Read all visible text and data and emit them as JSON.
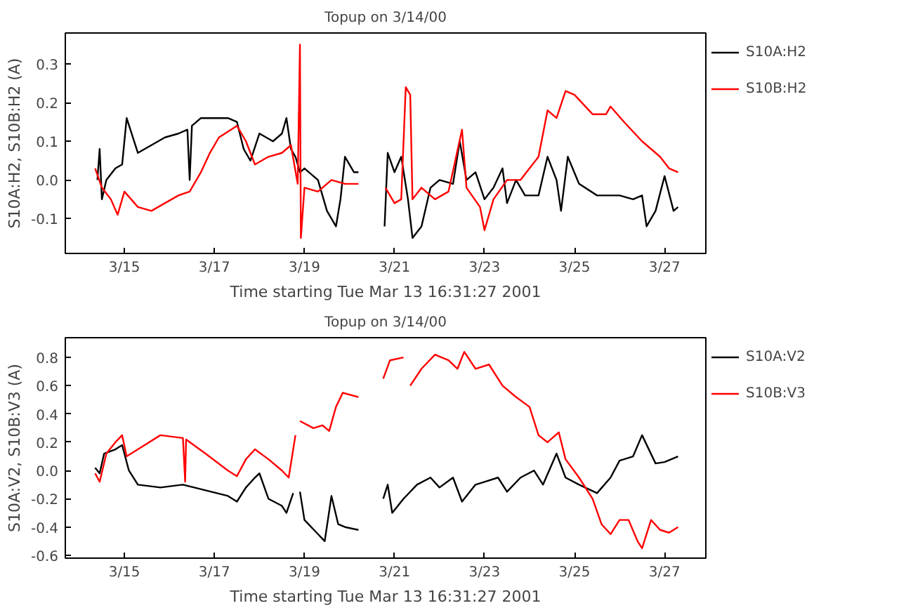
{
  "chart_data": [
    {
      "type": "line",
      "title": "Topup on 3/14/00",
      "xlabel": "Time starting Tue Mar 13 16:31:27 2001",
      "ylabel": "S10A:H2, S10B:H2 (A)",
      "xlim": [
        "2001-03-13T16:30",
        "2001-03-27T22:00"
      ],
      "xticks": [
        {
          "value": "2001-03-15",
          "label": "3/15"
        },
        {
          "value": "2001-03-17",
          "label": "3/17"
        },
        {
          "value": "2001-03-19",
          "label": "3/19"
        },
        {
          "value": "2001-03-21",
          "label": "3/21"
        },
        {
          "value": "2001-03-23",
          "label": "3/23"
        },
        {
          "value": "2001-03-25",
          "label": "3/25"
        },
        {
          "value": "2001-03-27",
          "label": "3/27"
        }
      ],
      "ylim": [
        -0.19,
        0.38
      ],
      "yticks": [
        {
          "value": -0.1,
          "label": "-0.1"
        },
        {
          "value": 0,
          "label": "0.0"
        },
        {
          "value": 0.1,
          "label": "0.1"
        },
        {
          "value": 0.2,
          "label": "0.2"
        },
        {
          "value": 0.3,
          "label": "0.3"
        }
      ],
      "grid": false,
      "legend": "right",
      "line_style": "solid",
      "series": [
        {
          "name": "S10A:H2",
          "color": "#000000",
          "x": [
            "2001-03-14T09:36",
            "2001-03-14T10:48",
            "2001-03-14T12:00",
            "2001-03-14T14:24",
            "2001-03-14T19:12",
            "2001-03-14T22:48",
            "2001-03-15T01:12",
            "2001-03-15T07:12",
            "2001-03-15T14:24",
            "2001-03-15T21:36",
            "2001-03-16T04:48",
            "2001-03-16T09:36",
            "2001-03-16T10:48",
            "2001-03-16T12:00",
            "2001-03-16T16:48",
            "2001-03-17T00:00",
            "2001-03-17T07:12",
            "2001-03-17T12:00",
            "2001-03-17T15:36",
            "2001-03-17T19:12",
            "2001-03-18T00:00",
            "2001-03-18T07:12",
            "2001-03-18T12:00",
            "2001-03-18T14:24",
            "2001-03-18T16:48",
            "2001-03-18T19:12",
            "2001-03-18T21:36",
            "2001-03-19T00:00",
            "2001-03-19T07:12",
            "2001-03-19T12:00",
            "2001-03-19T16:48",
            "2001-03-19T19:12",
            "2001-03-19T21:36",
            "2001-03-20T02:24",
            "2001-03-20T04:48",
            "2001-03-20T12:00",
            "2001-03-20T18:43",
            "2001-03-20T20:24",
            "2001-03-21T00:00",
            "2001-03-21T03:36",
            "2001-03-21T07:12",
            "2001-03-21T09:36",
            "2001-03-21T14:24",
            "2001-03-21T19:12",
            "2001-03-22T00:00",
            "2001-03-22T07:12",
            "2001-03-22T10:48",
            "2001-03-22T14:24",
            "2001-03-22T19:12",
            "2001-03-23T00:00",
            "2001-03-23T04:48",
            "2001-03-23T09:36",
            "2001-03-23T12:00",
            "2001-03-23T16:48",
            "2001-03-23T21:36",
            "2001-03-24T04:48",
            "2001-03-24T09:36",
            "2001-03-24T14:24",
            "2001-03-24T16:48",
            "2001-03-24T20:24",
            "2001-03-25T02:24",
            "2001-03-25T12:00",
            "2001-03-26T00:00",
            "2001-03-26T07:12",
            "2001-03-26T12:00",
            "2001-03-26T14:24",
            "2001-03-26T19:12",
            "2001-03-27T00:00",
            "2001-03-27T04:48",
            "2001-03-27T07:12"
          ],
          "values": [
            0.0,
            0.08,
            -0.05,
            0.0,
            0.03,
            0.04,
            0.16,
            0.07,
            0.09,
            0.11,
            0.12,
            0.13,
            0.0,
            0.14,
            0.16,
            0.16,
            0.16,
            0.15,
            0.08,
            0.05,
            0.12,
            0.1,
            0.12,
            0.16,
            0.08,
            0.06,
            0.02,
            0.03,
            0.0,
            -0.08,
            -0.12,
            -0.05,
            0.06,
            0.02,
            0.02,
            null,
            -0.12,
            0.07,
            0.02,
            0.06,
            -0.05,
            -0.15,
            -0.12,
            -0.02,
            0.0,
            -0.01,
            0.1,
            0.0,
            0.02,
            -0.05,
            -0.02,
            0.03,
            -0.06,
            0.0,
            -0.04,
            -0.04,
            0.06,
            0.0,
            -0.08,
            0.06,
            -0.01,
            -0.04,
            -0.04,
            -0.05,
            -0.04,
            -0.12,
            -0.08,
            0.01,
            -0.08,
            -0.07
          ]
        },
        {
          "name": "S10B:H2",
          "color": "#ff0000",
          "x": [
            "2001-03-14T08:24",
            "2001-03-14T12:00",
            "2001-03-14T16:48",
            "2001-03-14T20:24",
            "2001-03-15T00:00",
            "2001-03-15T07:12",
            "2001-03-15T14:24",
            "2001-03-15T21:36",
            "2001-03-16T04:48",
            "2001-03-16T10:48",
            "2001-03-16T16:48",
            "2001-03-16T21:36",
            "2001-03-17T02:24",
            "2001-03-17T12:00",
            "2001-03-17T16:48",
            "2001-03-17T21:36",
            "2001-03-18T04:48",
            "2001-03-18T12:00",
            "2001-03-18T16:48",
            "2001-03-18T20:24",
            "2001-03-18T21:36",
            "2001-03-18T22:05",
            "2001-03-19T00:00",
            "2001-03-19T07:12",
            "2001-03-19T14:24",
            "2001-03-19T21:36",
            "2001-03-20T04:48",
            "2001-03-20T12:00",
            "2001-03-20T19:12",
            "2001-03-21T00:00",
            "2001-03-21T03:36",
            "2001-03-21T06:00",
            "2001-03-21T08:24",
            "2001-03-21T09:36",
            "2001-03-21T14:24",
            "2001-03-21T21:36",
            "2001-03-22T04:48",
            "2001-03-22T12:00",
            "2001-03-22T14:24",
            "2001-03-22T21:36",
            "2001-03-23T00:00",
            "2001-03-23T04:48",
            "2001-03-23T12:00",
            "2001-03-23T19:12",
            "2001-03-24T00:00",
            "2001-03-24T04:48",
            "2001-03-24T09:36",
            "2001-03-24T14:24",
            "2001-03-24T19:12",
            "2001-03-25T00:00",
            "2001-03-25T09:36",
            "2001-03-25T16:48",
            "2001-03-25T19:12",
            "2001-03-26T02:24",
            "2001-03-26T12:00",
            "2001-03-26T21:36",
            "2001-03-27T02:24",
            "2001-03-27T07:12"
          ],
          "values": [
            0.03,
            -0.02,
            -0.05,
            -0.09,
            -0.03,
            -0.07,
            -0.08,
            -0.06,
            -0.04,
            -0.03,
            0.02,
            0.07,
            0.11,
            0.14,
            0.1,
            0.04,
            0.06,
            0.07,
            0.09,
            -0.01,
            0.35,
            -0.15,
            -0.02,
            -0.03,
            0.0,
            -0.01,
            -0.01,
            null,
            -0.02,
            -0.06,
            -0.05,
            0.24,
            0.22,
            -0.05,
            -0.02,
            -0.05,
            -0.03,
            0.13,
            -0.02,
            -0.07,
            -0.13,
            -0.05,
            0.0,
            0.0,
            0.03,
            0.06,
            0.18,
            0.16,
            0.23,
            0.22,
            0.17,
            0.17,
            0.19,
            0.15,
            0.1,
            0.06,
            0.03,
            0.02
          ]
        }
      ]
    },
    {
      "type": "line",
      "title": "Topup on 3/14/00",
      "xlabel": "Time starting Tue Mar 13 16:31:27 2001",
      "ylabel": "S10A:V2, S10B:V3 (A)",
      "xlim": [
        "2001-03-13T16:30",
        "2001-03-27T22:00"
      ],
      "xticks": [
        {
          "value": "2001-03-15",
          "label": "3/15"
        },
        {
          "value": "2001-03-17",
          "label": "3/17"
        },
        {
          "value": "2001-03-19",
          "label": "3/19"
        },
        {
          "value": "2001-03-21",
          "label": "3/21"
        },
        {
          "value": "2001-03-23",
          "label": "3/23"
        },
        {
          "value": "2001-03-25",
          "label": "3/25"
        },
        {
          "value": "2001-03-27",
          "label": "3/27"
        }
      ],
      "ylim": [
        -0.62,
        0.94
      ],
      "yticks": [
        {
          "value": -0.6,
          "label": "-0.6"
        },
        {
          "value": -0.4,
          "label": "-0.4"
        },
        {
          "value": -0.2,
          "label": "-0.2"
        },
        {
          "value": 0,
          "label": "0.0"
        },
        {
          "value": 0.2,
          "label": "0.2"
        },
        {
          "value": 0.4,
          "label": "0.4"
        },
        {
          "value": 0.6,
          "label": "0.6"
        },
        {
          "value": 0.8,
          "label": "0.8"
        }
      ],
      "grid": false,
      "legend": "right",
      "line_style": "solid",
      "series": [
        {
          "name": "S10A:V2",
          "color": "#000000",
          "x": [
            "2001-03-14T08:24",
            "2001-03-14T10:48",
            "2001-03-14T13:12",
            "2001-03-14T19:12",
            "2001-03-14T22:48",
            "2001-03-15T02:24",
            "2001-03-15T07:12",
            "2001-03-15T19:12",
            "2001-03-16T07:12",
            "2001-03-16T19:12",
            "2001-03-17T07:12",
            "2001-03-17T12:00",
            "2001-03-17T16:48",
            "2001-03-17T21:36",
            "2001-03-18T00:00",
            "2001-03-18T04:48",
            "2001-03-18T12:00",
            "2001-03-18T14:24",
            "2001-03-18T18:00",
            "2001-03-18T19:12",
            "2001-03-18T21:36",
            "2001-03-19T00:00",
            "2001-03-19T07:12",
            "2001-03-19T10:48",
            "2001-03-19T14:24",
            "2001-03-19T18:00",
            "2001-03-19T21:36",
            "2001-03-20T04:48",
            "2001-03-20T12:00",
            "2001-03-20T18:00",
            "2001-03-20T20:24",
            "2001-03-20T22:48",
            "2001-03-21T04:48",
            "2001-03-21T12:00",
            "2001-03-21T19:12",
            "2001-03-22T00:00",
            "2001-03-22T07:12",
            "2001-03-22T12:00",
            "2001-03-22T19:12",
            "2001-03-23T00:00",
            "2001-03-23T07:12",
            "2001-03-23T12:00",
            "2001-03-23T19:12",
            "2001-03-24T02:24",
            "2001-03-24T07:12",
            "2001-03-24T14:24",
            "2001-03-24T19:12",
            "2001-03-25T02:24",
            "2001-03-25T12:00",
            "2001-03-25T19:12",
            "2001-03-26T00:00",
            "2001-03-26T07:12",
            "2001-03-26T12:00",
            "2001-03-26T19:12",
            "2001-03-27T00:00",
            "2001-03-27T07:12"
          ],
          "values": [
            0.02,
            -0.02,
            0.12,
            0.15,
            0.18,
            0.0,
            -0.1,
            -0.12,
            -0.1,
            -0.14,
            -0.18,
            -0.22,
            -0.12,
            -0.05,
            -0.02,
            -0.2,
            -0.25,
            -0.3,
            -0.16,
            null,
            -0.15,
            -0.35,
            -0.45,
            -0.5,
            -0.18,
            -0.38,
            -0.4,
            -0.42,
            null,
            -0.2,
            -0.1,
            -0.3,
            -0.2,
            -0.1,
            -0.05,
            -0.12,
            -0.05,
            -0.22,
            -0.1,
            -0.08,
            -0.05,
            -0.15,
            -0.05,
            0.0,
            -0.1,
            0.12,
            -0.05,
            -0.1,
            -0.16,
            -0.05,
            0.07,
            0.1,
            0.25,
            0.05,
            0.06,
            0.1
          ]
        },
        {
          "name": "S10B:V3",
          "color": "#ff0000",
          "x": [
            "2001-03-14T08:24",
            "2001-03-14T10:48",
            "2001-03-14T14:24",
            "2001-03-14T19:12",
            "2001-03-14T22:48",
            "2001-03-15T01:12",
            "2001-03-15T07:12",
            "2001-03-15T19:12",
            "2001-03-16T07:12",
            "2001-03-16T08:24",
            "2001-03-16T08:53",
            "2001-03-16T19:12",
            "2001-03-17T07:12",
            "2001-03-17T12:00",
            "2001-03-17T16:48",
            "2001-03-17T21:36",
            "2001-03-18T04:48",
            "2001-03-18T12:00",
            "2001-03-18T15:36",
            "2001-03-18T19:12",
            "2001-03-18T20:24",
            "2001-03-18T21:36",
            "2001-03-19T04:48",
            "2001-03-19T09:36",
            "2001-03-19T13:12",
            "2001-03-19T16:48",
            "2001-03-19T20:24",
            "2001-03-20T04:48",
            "2001-03-20T12:00",
            "2001-03-20T18:00",
            "2001-03-20T21:36",
            "2001-03-21T04:48",
            "2001-03-21T06:00",
            "2001-03-21T08:24",
            "2001-03-21T14:24",
            "2001-03-21T21:36",
            "2001-03-22T04:48",
            "2001-03-22T09:36",
            "2001-03-22T13:12",
            "2001-03-22T19:12",
            "2001-03-23T02:24",
            "2001-03-23T09:36",
            "2001-03-23T16:48",
            "2001-03-24T00:00",
            "2001-03-24T04:48",
            "2001-03-24T09:36",
            "2001-03-24T15:36",
            "2001-03-24T19:12",
            "2001-03-25T02:24",
            "2001-03-25T09:36",
            "2001-03-25T14:24",
            "2001-03-25T19:12",
            "2001-03-26T00:00",
            "2001-03-26T04:48",
            "2001-03-26T09:36",
            "2001-03-26T12:00",
            "2001-03-26T16:48",
            "2001-03-26T21:36",
            "2001-03-27T02:24",
            "2001-03-27T07:12"
          ],
          "values": [
            -0.02,
            -0.08,
            0.12,
            0.2,
            0.25,
            0.1,
            0.15,
            0.25,
            0.23,
            -0.08,
            0.22,
            0.12,
            0.0,
            -0.04,
            0.08,
            0.15,
            0.08,
            0.0,
            -0.05,
            0.25,
            null,
            0.35,
            0.3,
            0.32,
            0.28,
            0.45,
            0.55,
            0.52,
            null,
            0.65,
            0.78,
            0.8,
            null,
            0.6,
            0.72,
            0.82,
            0.78,
            0.72,
            0.84,
            0.72,
            0.75,
            0.6,
            0.52,
            0.45,
            0.25,
            0.2,
            0.27,
            0.08,
            -0.05,
            -0.2,
            -0.38,
            -0.45,
            -0.35,
            -0.35,
            -0.5,
            -0.55,
            -0.35,
            -0.42,
            -0.44,
            -0.4
          ]
        }
      ]
    }
  ]
}
